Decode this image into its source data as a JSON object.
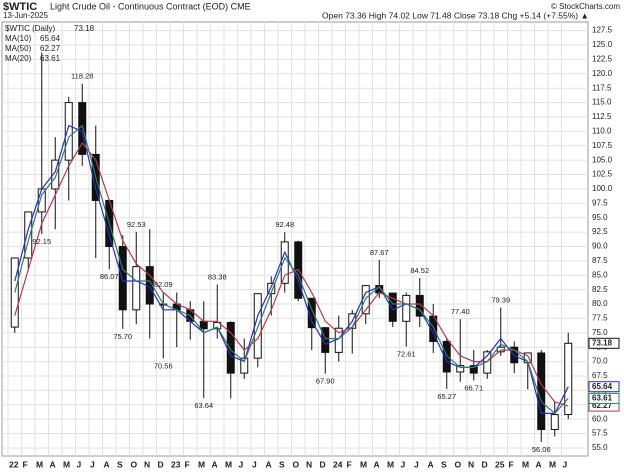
{
  "chart_data": {
    "type": "candlestick",
    "symbol": "$WTIC",
    "title": "Light Crude Oil - Continuous Contract (EOD) CME",
    "date": "13-Jun-2025",
    "quote": "Open 73.36  High 74.02  Low 71.48  Close 73.18  Chg +5.14 (+7.55%) ▲",
    "credit": "© StockCharts.com",
    "price_name": "$WTIC (Daily)",
    "categories": [
      "22",
      "F",
      "M",
      "A",
      "M",
      "J",
      "J",
      "A",
      "S",
      "O",
      "N",
      "D",
      "23",
      "F",
      "M",
      "A",
      "M",
      "J",
      "J",
      "A",
      "S",
      "O",
      "N",
      "D",
      "24",
      "F",
      "M",
      "A",
      "M",
      "J",
      "J",
      "A",
      "S",
      "O",
      "N",
      "D",
      "25",
      "F",
      "M",
      "A",
      "M",
      "J"
    ],
    "open": [
      76,
      88,
      96,
      100,
      105,
      115,
      106,
      98,
      90,
      79,
      86.5,
      80,
      80,
      79,
      77,
      75.7,
      76.8,
      68,
      70.6,
      81.8,
      83.6,
      90.8,
      81,
      75.9,
      71.6,
      75.8,
      78.3,
      83.2,
      81.9,
      77,
      81.5,
      77.9,
      73.5,
      68.2,
      69.3,
      68,
      71.7,
      72.5,
      69.8,
      71.5,
      58.2,
      60.8
    ],
    "high": [
      88,
      96,
      123.7,
      109,
      116,
      118.28,
      111,
      98,
      92,
      92.53,
      93,
      82.09,
      82,
      80.5,
      80.5,
      83.38,
      77,
      74,
      81.8,
      84.8,
      92.48,
      91,
      81,
      76,
      78,
      79,
      83,
      87.67,
      82,
      82,
      84.52,
      80,
      74,
      77.4,
      72,
      72,
      79.39,
      73.5,
      71,
      72,
      63,
      75
    ],
    "low": [
      75,
      86,
      92.15,
      93,
      98,
      104,
      88,
      86.07,
      75.7,
      76.5,
      74,
      70.56,
      72.5,
      73.8,
      63.64,
      74,
      63.6,
      67,
      69,
      78,
      82,
      80.5,
      72,
      67.9,
      70,
      71.4,
      76.5,
      81,
      76,
      72.61,
      76,
      71.5,
      65.27,
      66.5,
      66.71,
      67,
      71,
      68,
      65.2,
      56.06,
      57,
      60
    ],
    "close": [
      88,
      96,
      100,
      105,
      115,
      106,
      98,
      90,
      79,
      86.5,
      80,
      80,
      79,
      77,
      75.7,
      76.8,
      68,
      70.6,
      81.8,
      83.6,
      90.8,
      81,
      75.9,
      71.6,
      75.8,
      78.3,
      83.2,
      81.9,
      77,
      81.5,
      77.9,
      73.5,
      68.2,
      69.3,
      68,
      71.7,
      72.5,
      69.8,
      71.5,
      58.2,
      60.8,
      73.18
    ],
    "series": [
      {
        "name": "MA(10)",
        "color": "#2b2bd0",
        "values": [
          84,
          93,
          100,
          103,
          111,
          110,
          100,
          92,
          84,
          84,
          83,
          79,
          79,
          77,
          75,
          76,
          71,
          70,
          78,
          83,
          89,
          84,
          77,
          73,
          74,
          77,
          82,
          83,
          79,
          80,
          79,
          75,
          70,
          69,
          69,
          71,
          74,
          71,
          70,
          61,
          61,
          65.64
        ]
      },
      {
        "name": "MA(50)",
        "color": "#b23a55",
        "values": [
          78,
          86,
          94,
          99,
          104,
          108,
          105,
          98,
          91,
          87,
          85,
          82,
          80,
          79,
          77,
          77,
          75,
          72,
          74,
          79,
          85,
          86,
          82,
          77,
          75,
          76,
          79,
          82,
          81,
          80,
          80,
          78,
          74,
          71,
          70,
          70,
          72,
          72,
          71,
          66,
          63,
          62.27
        ]
      },
      {
        "name": "MA(20)",
        "color": "#2f8060",
        "values": [
          82,
          91,
          99,
          102,
          109,
          111,
          102,
          94,
          86,
          84,
          84,
          80,
          79,
          78,
          75,
          76,
          72,
          70,
          76,
          82,
          88,
          85,
          79,
          74,
          74,
          76,
          81,
          83,
          80,
          80,
          79,
          76,
          71,
          69,
          69,
          70,
          73,
          72,
          70,
          63,
          61,
          63.61
        ]
      }
    ],
    "annotations": [
      {
        "label": "118.28",
        "index": 5,
        "value": 118.28,
        "position": "above"
      },
      {
        "label": "92.15",
        "index": 2,
        "value": 92.15,
        "position": "below"
      },
      {
        "label": "86.07",
        "index": 7,
        "value": 86.07,
        "position": "below"
      },
      {
        "label": "75.70",
        "index": 8,
        "value": 75.7,
        "position": "below"
      },
      {
        "label": "92.53",
        "index": 9,
        "value": 92.53,
        "position": "above"
      },
      {
        "label": "82.09",
        "index": 11,
        "value": 82.09,
        "position": "above"
      },
      {
        "label": "70.56",
        "index": 11,
        "value": 70.56,
        "position": "below"
      },
      {
        "label": "63.64",
        "index": 14,
        "value": 63.64,
        "position": "below"
      },
      {
        "label": "83.38",
        "index": 15,
        "value": 83.38,
        "position": "above"
      },
      {
        "label": "92.48",
        "index": 20,
        "value": 92.48,
        "position": "above"
      },
      {
        "label": "67.90",
        "index": 23,
        "value": 67.9,
        "position": "below"
      },
      {
        "label": "87.67",
        "index": 27,
        "value": 87.67,
        "position": "above"
      },
      {
        "label": "72.61",
        "index": 29,
        "value": 72.61,
        "position": "below"
      },
      {
        "label": "84.52",
        "index": 30,
        "value": 84.52,
        "position": "above"
      },
      {
        "label": "65.27",
        "index": 32,
        "value": 65.27,
        "position": "below"
      },
      {
        "label": "77.40",
        "index": 33,
        "value": 77.4,
        "position": "above"
      },
      {
        "label": "66.71",
        "index": 34,
        "value": 66.71,
        "position": "below"
      },
      {
        "label": "79.39",
        "index": 36,
        "value": 79.39,
        "position": "above"
      },
      {
        "label": "56.06",
        "index": 39,
        "value": 56.06,
        "position": "below"
      }
    ],
    "ylim": [
      53.6,
      129
    ],
    "yticks": [
      {
        "value": 55,
        "label": "55.0"
      },
      57.5,
      {
        "value": 60,
        "label": "60.0"
      },
      62.5,
      {
        "value": 65,
        "label": "65.0"
      },
      67.5,
      {
        "value": 70,
        "label": "70.0"
      },
      72.5,
      {
        "value": 75,
        "label": "75.0"
      },
      77.5,
      {
        "value": 80,
        "label": "80.0"
      },
      82.5,
      {
        "value": 85,
        "label": "85.0"
      },
      87.5,
      {
        "value": 90,
        "label": "90.0"
      },
      92.5,
      {
        "value": 95,
        "label": "95.0"
      },
      97.5,
      {
        "value": 100,
        "label": "100.0"
      },
      102.5,
      {
        "value": 105,
        "label": "105.0"
      },
      107.5,
      {
        "value": 110,
        "label": "110.0"
      },
      112.5,
      {
        "value": 115,
        "label": "115.0"
      },
      117.5,
      {
        "value": 120,
        "label": "120.0"
      },
      122.5,
      {
        "value": 125,
        "label": "125.0"
      },
      127.5
    ],
    "grid": true,
    "log_scale": false
  }
}
